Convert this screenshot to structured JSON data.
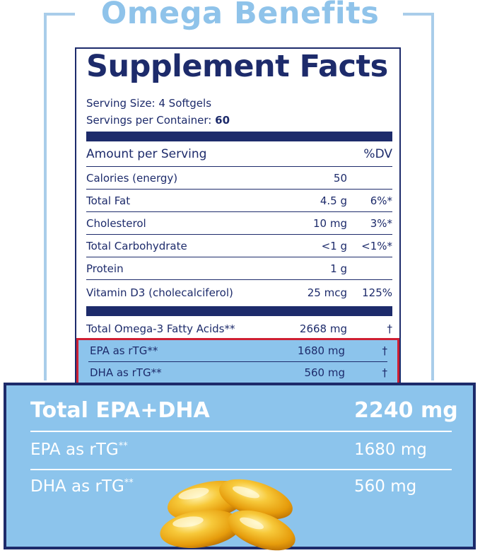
{
  "headline": "Omega Benefits",
  "facts": {
    "title": "Supplement Facts",
    "serving_size": "Serving Size: 4 Softgels",
    "servings_label": "Servings per Container:",
    "servings_value": "60",
    "header": {
      "label": "Amount per Serving",
      "dv": "%DV"
    },
    "rows": [
      {
        "label": "Calories (energy)",
        "amount": "50",
        "dv": ""
      },
      {
        "label": "Total Fat",
        "amount": "4.5 g",
        "dv": "6%*"
      },
      {
        "label": "Cholesterol",
        "amount": "10 mg",
        "dv": "3%*"
      },
      {
        "label": "Total Carbohydrate",
        "amount": "<1 g",
        "dv": "<1%*"
      },
      {
        "label": "Protein",
        "amount": "1 g",
        "dv": ""
      },
      {
        "label": "Vitamin D3 (cholecalciferol)",
        "amount": "25 mcg",
        "dv": "125%"
      }
    ],
    "omega_row": {
      "label": "Total Omega-3 Fatty Acids**",
      "amount": "2668 mg",
      "dv": "†"
    },
    "highlighted": [
      {
        "label": "EPA as rTG**",
        "amount": "1680 mg",
        "dv": "†"
      },
      {
        "label": "DHA as rTG**",
        "amount": "560 mg",
        "dv": "†"
      }
    ]
  },
  "callout": {
    "total_label": "Total EPA+DHA",
    "total_value": "2240 mg",
    "epa_label": "EPA as rTG",
    "epa_sup": "**",
    "epa_value": "1680 mg",
    "dha_label": "DHA as rTG",
    "dha_sup": "**",
    "dha_value": "560 mg"
  },
  "colors": {
    "navy": "#1d2b6b",
    "light_blue": "#8cc4ec",
    "highlight_border": "#cf1f33",
    "headline": "#8fc3ea",
    "softgel": "#f2b318"
  },
  "decor": {
    "softgels": "softgel-capsules-image"
  }
}
